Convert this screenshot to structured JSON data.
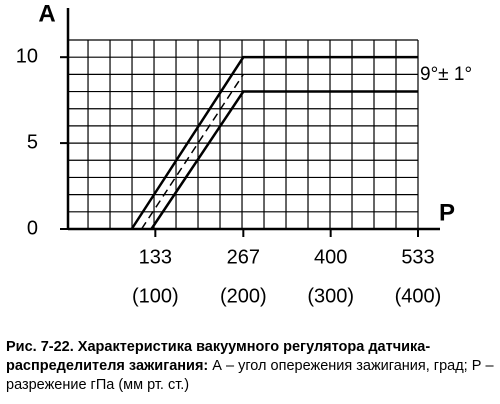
{
  "chart_data": {
    "type": "line",
    "y_label": "A",
    "x_label": "P",
    "xlim": [
      0,
      533
    ],
    "ylim": [
      0,
      11
    ],
    "xticks": [
      133,
      267,
      400,
      533
    ],
    "yticks": [
      0,
      5,
      10
    ],
    "x_secondary_labels": [
      "(100)",
      "(200)",
      "(300)",
      "(400)"
    ],
    "grid": true,
    "series": [
      {
        "color": "#000000",
        "style": "solid",
        "x": [
          97,
          267,
          533
        ],
        "values": [
          0,
          10,
          10
        ]
      },
      {
        "color": "#000000",
        "style": "dashed",
        "x": [
          112,
          267
        ],
        "values": [
          0,
          9
        ]
      },
      {
        "color": "#000000",
        "style": "solid",
        "x": [
          127,
          267,
          533
        ],
        "values": [
          0,
          8,
          8
        ]
      }
    ],
    "annotation": "9°± 1°"
  },
  "caption": {
    "title": "Рис. 7-22. Характеристика вакуумного регулятора датчика-распределителя зажигания:",
    "text": "А – угол опережения зажигания, град; Р – разрежение гПа (мм рт. ст.)"
  }
}
